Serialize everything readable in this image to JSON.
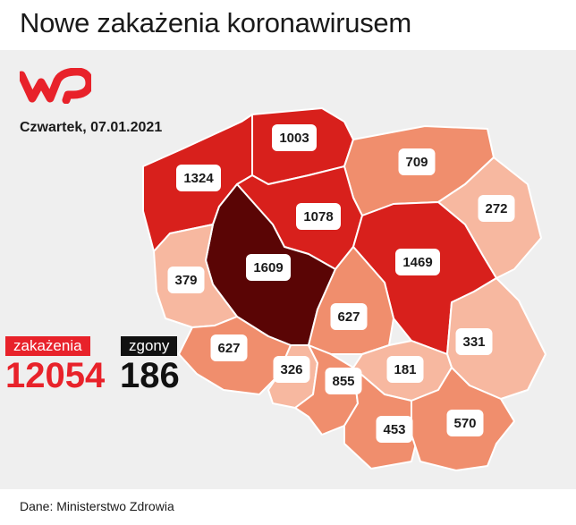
{
  "title": "Nowe zakażenia koronawirusem",
  "date": "Czwartek, 07.01.2021",
  "logo": {
    "name": "wp-logo",
    "color": "#e8222a"
  },
  "legend": {
    "cases_label": "zakażenia",
    "deaths_label": "zgony",
    "cases_total": "12054",
    "deaths_total": "186"
  },
  "source": "Dane: Ministerstwo Zdrowia",
  "colors": {
    "accent": "#e8222a",
    "background": "#efefef",
    "border": "#ffffff",
    "scale": [
      "#f7b8a0",
      "#f08e6d",
      "#e0462f",
      "#d8201c",
      "#5a0505"
    ]
  },
  "regions": [
    {
      "name": "zachodniopomorskie",
      "value": "1324",
      "level": 3
    },
    {
      "name": "pomorskie",
      "value": "1003",
      "level": 3
    },
    {
      "name": "warmińsko-mazurskie",
      "value": "709",
      "level": 1
    },
    {
      "name": "podlaskie",
      "value": "272",
      "level": 0
    },
    {
      "name": "kujawsko-pomorskie",
      "value": "1078",
      "level": 3
    },
    {
      "name": "wielkopolskie",
      "value": "1609",
      "level": 4
    },
    {
      "name": "lubuskie",
      "value": "379",
      "level": 0
    },
    {
      "name": "mazowieckie",
      "value": "1469",
      "level": 3
    },
    {
      "name": "łódzkie",
      "value": "627",
      "level": 1
    },
    {
      "name": "dolnośląskie",
      "value": "627",
      "level": 1
    },
    {
      "name": "lubelskie",
      "value": "331",
      "level": 0
    },
    {
      "name": "opolskie",
      "value": "326",
      "level": 0
    },
    {
      "name": "śląskie",
      "value": "855",
      "level": 1
    },
    {
      "name": "świętokrzyskie",
      "value": "181",
      "level": 0
    },
    {
      "name": "małopolskie",
      "value": "453",
      "level": 1
    },
    {
      "name": "podkarpackie",
      "value": "570",
      "level": 1
    }
  ]
}
